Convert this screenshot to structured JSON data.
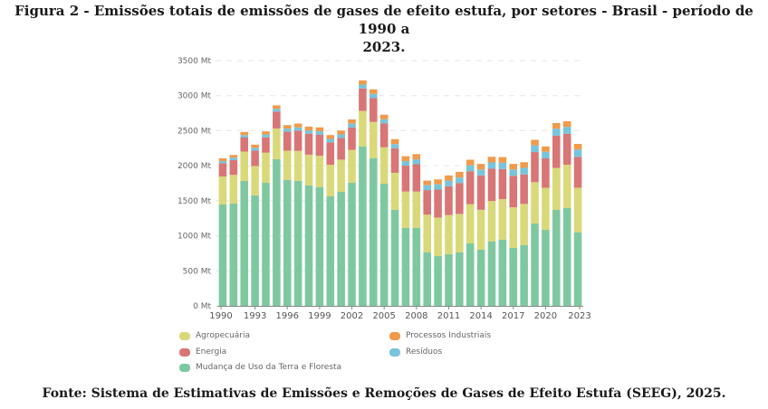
{
  "figure": {
    "title_line1": "Figura 2 - Emissões totais de emissões de gases de efeito estufa, por setores - Brasil - período de 1990 a",
    "title_line2": "2023.",
    "source": "Fonte: Sistema de Estimativas de Emissões e Remoções de Gases de Efeito Estufa (SEEG), 2025."
  },
  "chart_data": {
    "type": "bar",
    "stacked": true,
    "title": "Emissões totais de emissões de gases de efeito estufa, por setores - Brasil - período de 1990 a 2023",
    "xlabel": "",
    "ylabel": "",
    "ylim": [
      0,
      3500
    ],
    "y_unit": "Mt",
    "grid": true,
    "yticks": [
      "0 Mt",
      "500 Mt",
      "1000 Mt",
      "1500 Mt",
      "2000 Mt",
      "2500 Mt",
      "3000 Mt",
      "3500 Mt"
    ],
    "ytick_values": [
      0,
      500,
      1000,
      1500,
      2000,
      2500,
      3000,
      3500
    ],
    "xtick_labels": [
      "1990",
      "1993",
      "1996",
      "1999",
      "2002",
      "2005",
      "2008",
      "2011",
      "2014",
      "2017",
      "2020",
      "2023"
    ],
    "categories": [
      "1990",
      "1991",
      "1992",
      "1993",
      "1994",
      "1995",
      "1996",
      "1997",
      "1998",
      "1999",
      "2000",
      "2001",
      "2002",
      "2003",
      "2004",
      "2005",
      "2006",
      "2007",
      "2008",
      "2009",
      "2010",
      "2011",
      "2012",
      "2013",
      "2014",
      "2015",
      "2016",
      "2017",
      "2018",
      "2019",
      "2020",
      "2021",
      "2022",
      "2023"
    ],
    "legend_position": "bottom",
    "series": [
      {
        "name": "Mudança de Uso da Terra e Floresta",
        "color": "#7ec8a0",
        "values": [
          1446,
          1459,
          1782,
          1576,
          1756,
          2092,
          1795,
          1782,
          1718,
          1692,
          1563,
          1627,
          1756,
          2273,
          2105,
          1743,
          1369,
          1111,
          1111,
          762,
          710,
          736,
          762,
          891,
          801,
          917,
          943,
          826,
          865,
          1175,
          1085,
          1369,
          1395,
          1046
        ]
      },
      {
        "name": "Agropecuária",
        "color": "#d9d97a",
        "values": [
          400,
          410,
          420,
          420,
          430,
          440,
          420,
          430,
          440,
          450,
          450,
          460,
          470,
          510,
          520,
          520,
          530,
          520,
          520,
          540,
          550,
          560,
          550,
          560,
          570,
          580,
          580,
          580,
          590,
          590,
          600,
          600,
          620,
          640
        ]
      },
      {
        "name": "Energia",
        "color": "#d87575",
        "values": [
          190,
          210,
          200,
          220,
          220,
          240,
          270,
          290,
          300,
          300,
          320,
          310,
          320,
          320,
          340,
          340,
          350,
          370,
          390,
          350,
          400,
          410,
          440,
          470,
          490,
          460,
          430,
          450,
          420,
          430,
          420,
          460,
          440,
          440
        ]
      },
      {
        "name": "Resíduos",
        "color": "#78c4dc",
        "values": [
          30,
          35,
          35,
          40,
          40,
          40,
          45,
          45,
          45,
          50,
          50,
          50,
          55,
          55,
          60,
          60,
          60,
          65,
          70,
          70,
          75,
          80,
          80,
          85,
          85,
          90,
          90,
          90,
          95,
          95,
          95,
          100,
          100,
          105
        ]
      },
      {
        "name": "Processos Industriais",
        "color": "#f09a4a",
        "values": [
          40,
          40,
          45,
          45,
          45,
          50,
          50,
          55,
          55,
          55,
          55,
          55,
          60,
          60,
          65,
          65,
          70,
          70,
          75,
          65,
          70,
          75,
          80,
          80,
          80,
          80,
          80,
          80,
          80,
          80,
          75,
          80,
          80,
          80
        ]
      }
    ]
  },
  "legend": {
    "items": [
      {
        "label": "Agropecuária",
        "color": "#d9d97a"
      },
      {
        "label": "Processos Industriais",
        "color": "#f09a4a"
      },
      {
        "label": "Energia",
        "color": "#d87575"
      },
      {
        "label": "Resíduos",
        "color": "#78c4dc"
      },
      {
        "label": "Mudança de Uso da Terra e Floresta",
        "color": "#7ec8a0"
      }
    ]
  }
}
